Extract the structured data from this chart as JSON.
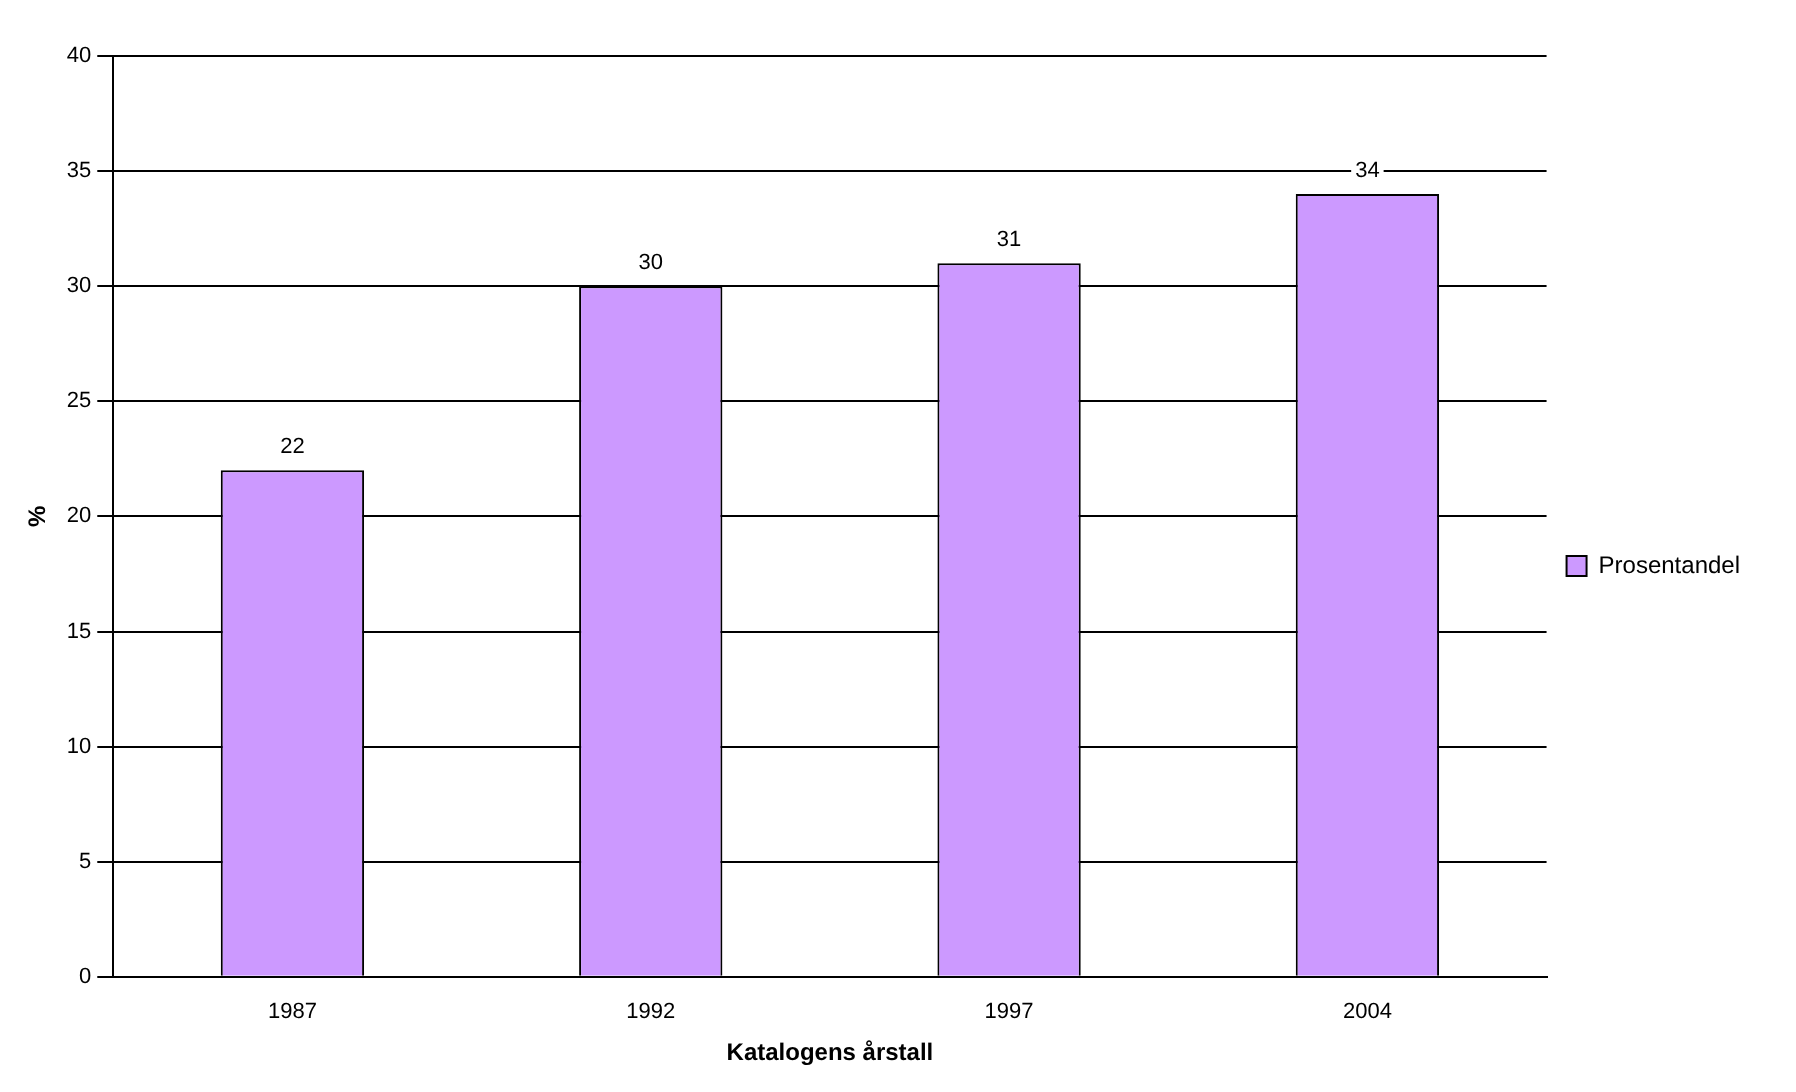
{
  "chart_data": {
    "type": "bar",
    "xlabel": "Katalogens årstall",
    "ylabel": "%",
    "categories": [
      "1987",
      "1992",
      "1997",
      "2004"
    ],
    "series": [
      {
        "name": "Prosentandel",
        "color": "#cc99ff",
        "values": [
          22,
          30,
          31,
          34
        ]
      }
    ],
    "ylim": [
      0,
      40
    ],
    "yticks": [
      0,
      5,
      10,
      15,
      20,
      25,
      30,
      35,
      40
    ],
    "grid": "y",
    "legend": "right",
    "data_labels": true
  }
}
